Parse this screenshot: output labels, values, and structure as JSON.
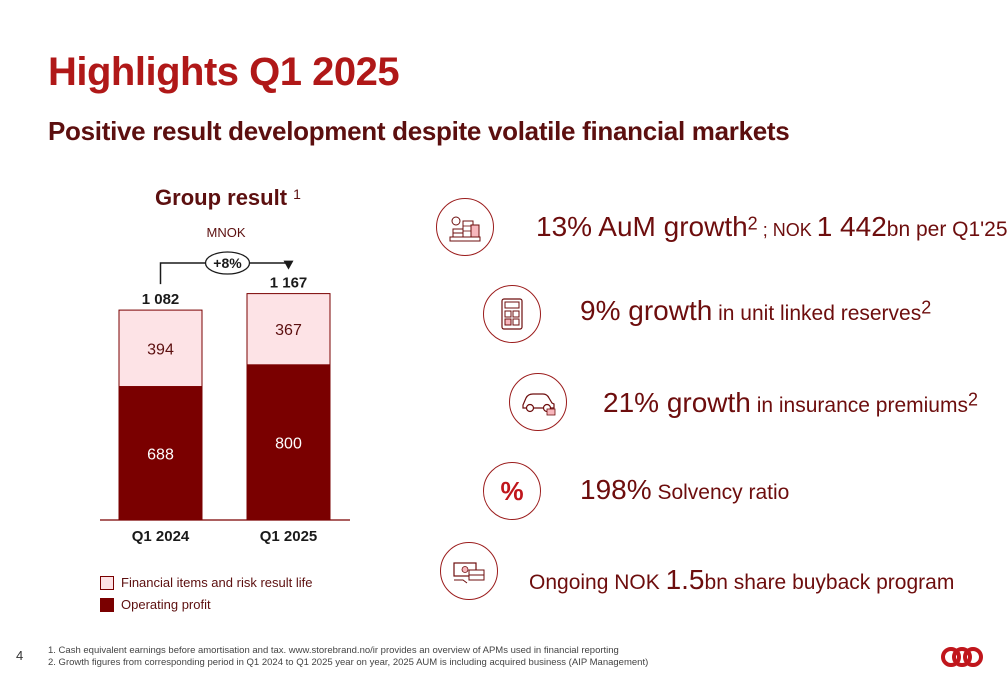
{
  "title": "Highlights Q1 2025",
  "subtitle": "Positive result development despite volatile financial markets",
  "chart_data": {
    "type": "bar",
    "stacked": true,
    "title": "Group result",
    "title_sup": "1",
    "unit": "MNOK",
    "categories": [
      "Q1 2024",
      "Q1 2025"
    ],
    "totals": [
      "1 082",
      "1 167"
    ],
    "growth_label": "+8%",
    "series": [
      {
        "name": "Operating profit",
        "values": [
          688,
          800
        ],
        "color": "#7a0000"
      },
      {
        "name": "Financial items and risk result life",
        "values": [
          394,
          367
        ],
        "color": "#fde3e6"
      }
    ]
  },
  "highlights": [
    {
      "icon": "money-stack-icon",
      "value": "13% AuM growth",
      "sup": "2",
      "rest": " ; NOK ",
      "value2": "1 442",
      "rest2": "bn per Q1'25"
    },
    {
      "icon": "calculator-icon",
      "value": "9% growth",
      "rest": " in unit linked reserves",
      "sup": "2"
    },
    {
      "icon": "car-icon",
      "value": "21% growth",
      "rest": " in insurance premiums",
      "sup": "2"
    },
    {
      "icon": "percent-icon",
      "glyph": "%",
      "value": "198%",
      "rest": " Solvency ratio"
    },
    {
      "icon": "cash-hand-icon",
      "pre": "Ongoing NOK ",
      "value": "1.5",
      "rest": "bn share buyback program"
    }
  ],
  "footnotes": [
    "1. Cash equivalent earnings before amortisation and tax. www.storebrand.no/ir provides an overview of APMs used in financial reporting",
    "2. Growth figures from corresponding period in Q1 2024 to Q1 2025 year on year, 2025 AUM is including acquired business (AIP Management)"
  ],
  "page_number": "4",
  "colors": {
    "accent": "#b01818",
    "dark": "#7a0000",
    "light": "#fde3e6"
  }
}
